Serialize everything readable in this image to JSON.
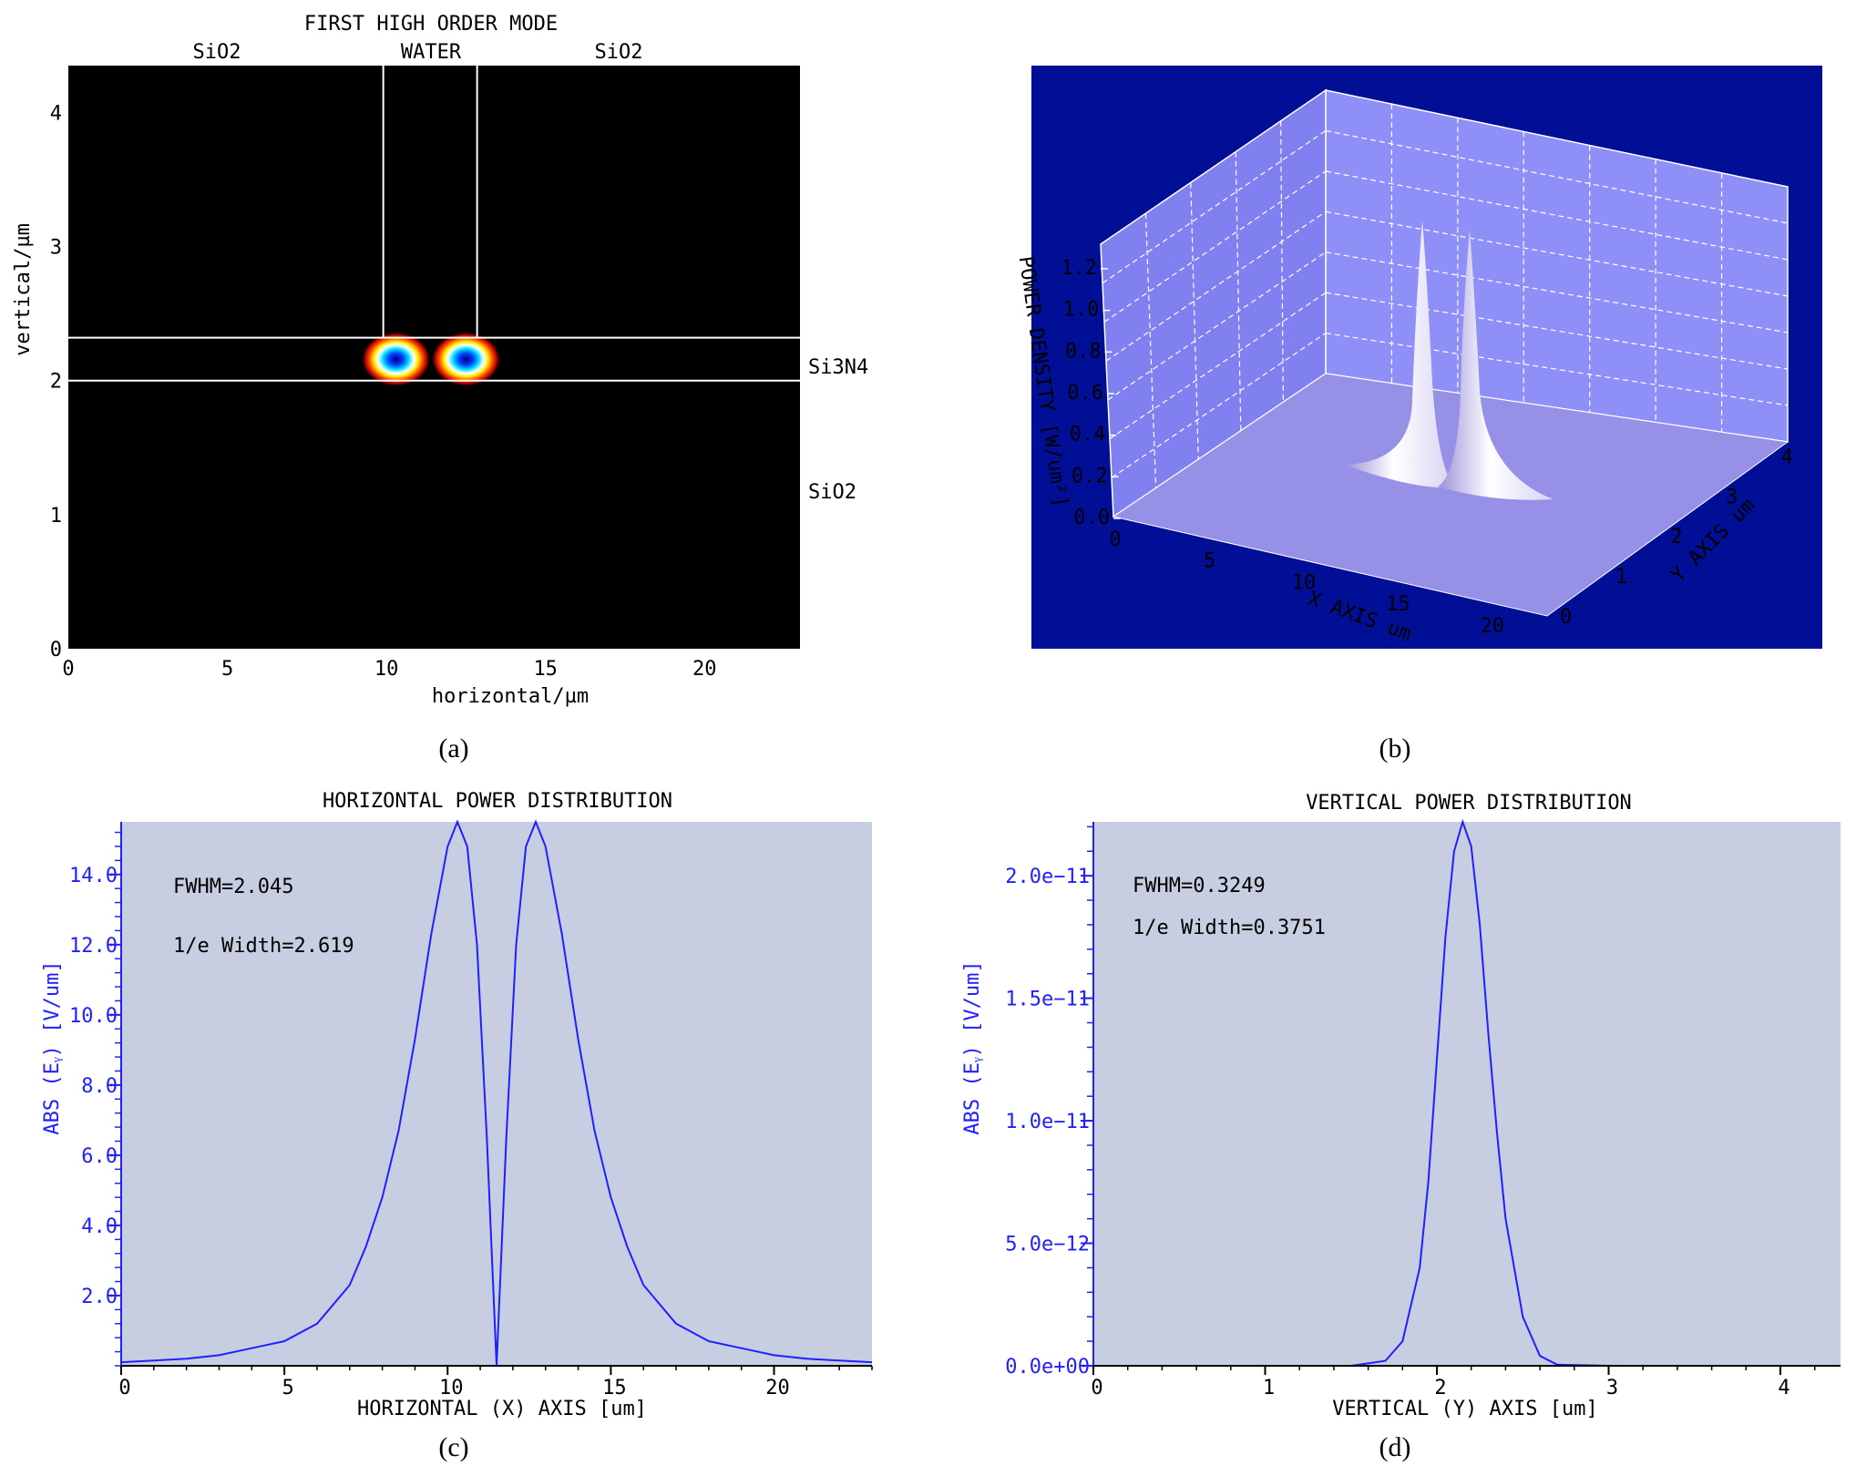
{
  "chart_data": [
    {
      "panel": "(a)",
      "type": "heatmap",
      "title": "FIRST HIGH ORDER MODE",
      "xlabel": "horizontal/µm",
      "ylabel": "vertical/µm",
      "xlim": [
        0,
        23
      ],
      "ylim": [
        0,
        4.35
      ],
      "x_ticks": [
        0,
        5,
        10,
        15,
        20
      ],
      "y_ticks": [
        0,
        1,
        2,
        3,
        4
      ],
      "region_labels": {
        "top_left": "SiO2",
        "top_center": "WATER",
        "top_right": "SiO2",
        "right_core": "Si3N4",
        "right_lower": "SiO2"
      },
      "boundaries": {
        "slot_x": [
          9.9,
          12.85
        ],
        "core_y": [
          2.0,
          2.32
        ]
      },
      "lobes": [
        {
          "x": 10.3,
          "y": 2.16
        },
        {
          "x": 12.5,
          "y": 2.16
        }
      ],
      "background_color": "#000000"
    },
    {
      "panel": "(b)",
      "type": "surface",
      "zlabel": "POWER DENSITY [W/um²]",
      "xlabel": "X AXIS um",
      "ylabel": "Y AXIS um",
      "x_ticks": [
        0,
        5,
        10,
        15,
        20
      ],
      "y_ticks": [
        0,
        1,
        2,
        3,
        4
      ],
      "z_ticks": [
        "0.0",
        "0.2",
        "0.4",
        "0.6",
        "0.8",
        "1.0",
        "1.2"
      ],
      "background_color": "#000f96",
      "wall_color": "#8f8ff8"
    },
    {
      "panel": "(c)",
      "type": "line",
      "title": "HORIZONTAL POWER DISTRIBUTION",
      "xlabel": "HORIZONTAL (X) AXIS [um]",
      "ylabel": "ABS (Eᵧ) [V/um]",
      "xlim": [
        0,
        23
      ],
      "ylim": [
        0,
        15.5
      ],
      "x_ticks": [
        "0",
        "5",
        "10",
        "15",
        "20"
      ],
      "y_ticks": [
        "2.0",
        "4.0",
        "6.0",
        "8.0",
        "10.0",
        "12.0",
        "14.0"
      ],
      "annotations": [
        "FWHM=2.045",
        "1/e Width=2.619"
      ],
      "line_color": "#2020ff",
      "background_color": "#c8cee2",
      "x": [
        0,
        1,
        2,
        3,
        4,
        5,
        6,
        7,
        7.5,
        8,
        8.5,
        9,
        9.5,
        10,
        10.3,
        10.6,
        10.9,
        11.2,
        11.5,
        11.8,
        12.1,
        12.4,
        12.7,
        13,
        13.5,
        14,
        14.5,
        15,
        15.5,
        16,
        17,
        18,
        19,
        20,
        21,
        22,
        23
      ],
      "y": [
        0.1,
        0.15,
        0.2,
        0.3,
        0.5,
        0.7,
        1.2,
        2.3,
        3.4,
        4.8,
        6.7,
        9.3,
        12.3,
        14.8,
        15.5,
        14.8,
        12.0,
        6.5,
        0.0,
        6.5,
        12.0,
        14.8,
        15.5,
        14.8,
        12.3,
        9.3,
        6.7,
        4.8,
        3.4,
        2.3,
        1.2,
        0.7,
        0.5,
        0.3,
        0.2,
        0.15,
        0.1
      ]
    },
    {
      "panel": "(d)",
      "type": "line",
      "title": "VERTICAL POWER DISTRIBUTION",
      "xlabel": "VERTICAL (Y) AXIS [um]",
      "ylabel": "ABS (Eᵧ) [V/um]",
      "xlim": [
        0,
        4.35
      ],
      "ylim": [
        0,
        2.22e-11
      ],
      "x_ticks": [
        "0",
        "1",
        "2",
        "3",
        "4"
      ],
      "y_ticks": [
        "0.0e+00",
        "5.0e−12",
        "1.0e−11",
        "1.5e−11",
        "2.0e−11"
      ],
      "annotations": [
        "FWHM=0.3249",
        "1/e Width=0.3751"
      ],
      "line_color": "#2020ff",
      "background_color": "#c8cee2",
      "x": [
        0,
        1.5,
        1.7,
        1.8,
        1.9,
        1.95,
        2.0,
        2.05,
        2.1,
        2.15,
        2.2,
        2.25,
        2.3,
        2.35,
        2.4,
        2.5,
        2.6,
        2.7,
        3.0,
        4.35
      ],
      "y": [
        0,
        0,
        2e-13,
        1e-12,
        4e-12,
        7.5e-12,
        1.25e-11,
        1.75e-11,
        2.1e-11,
        2.22e-11,
        2.12e-11,
        1.8e-11,
        1.35e-11,
        9.5e-12,
        6e-12,
        2e-12,
        4e-13,
        5e-14,
        0,
        0
      ]
    }
  ],
  "captions": [
    "(a)",
    "(b)",
    "(c)",
    "(d)"
  ]
}
